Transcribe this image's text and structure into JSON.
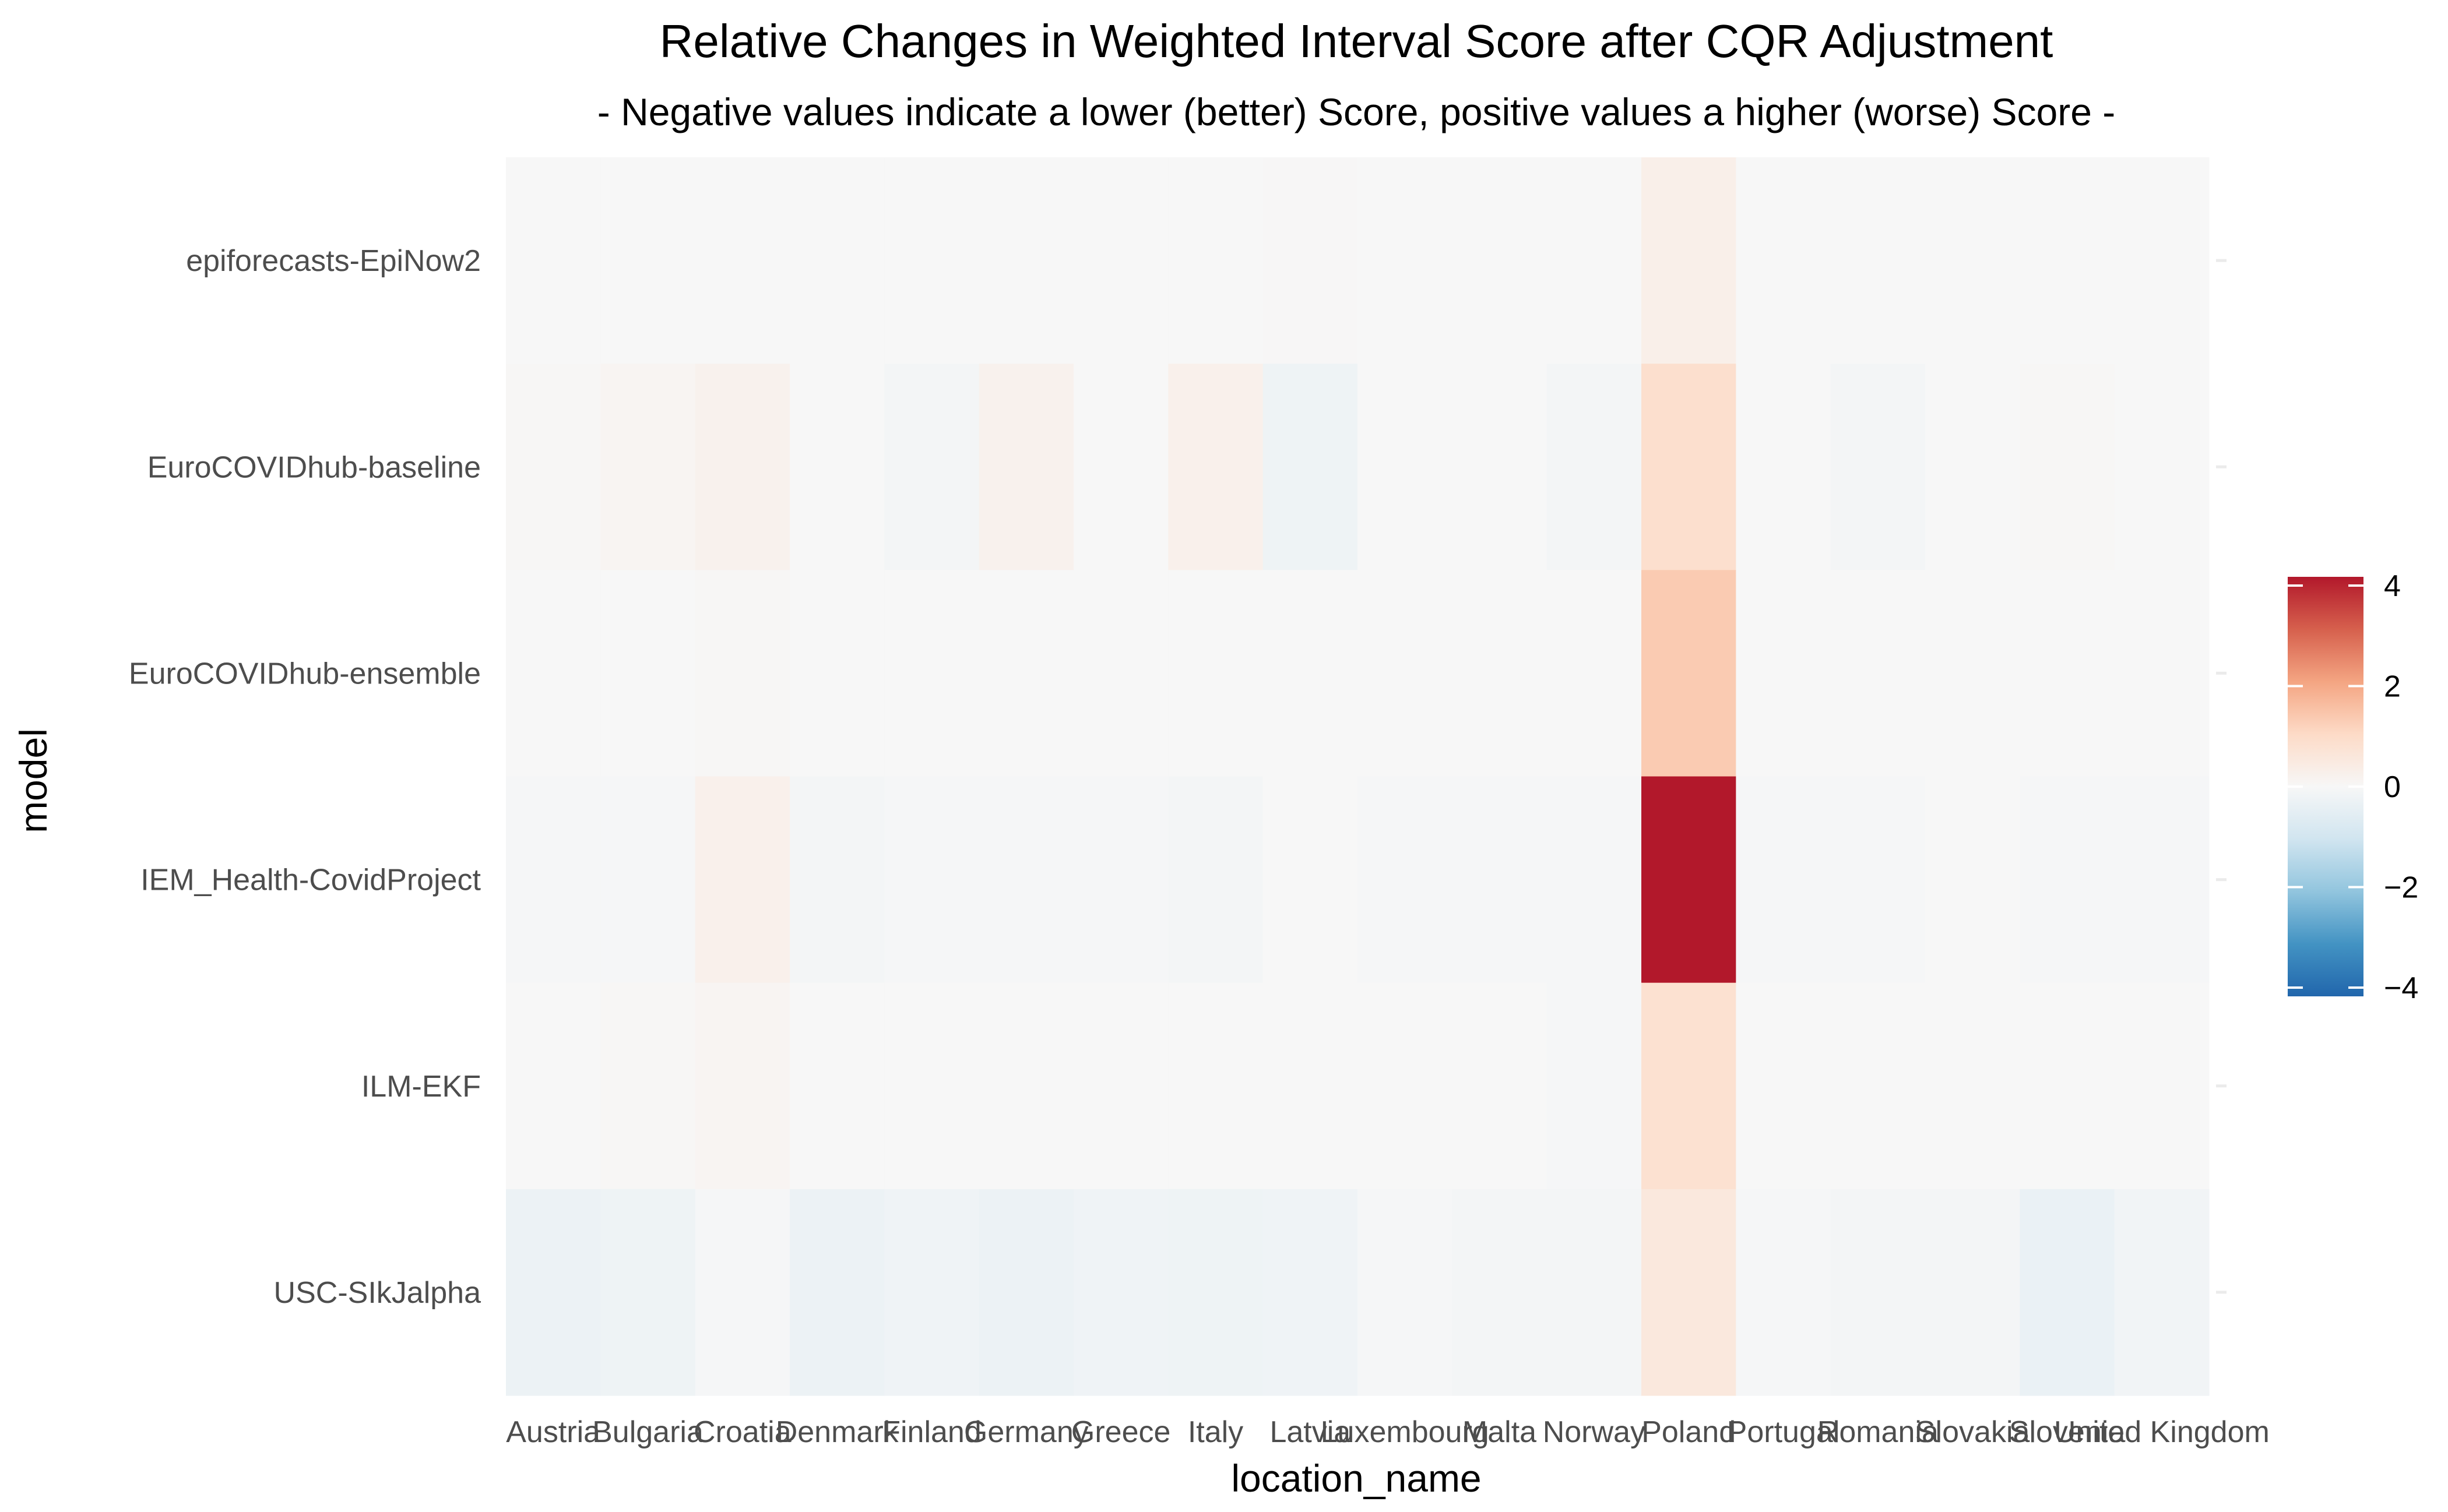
{
  "chart_data": {
    "type": "heatmap",
    "title": "Relative Changes in Weighted Interval Score after CQR Adjustment",
    "subtitle": "- Negative values indicate a lower (better) Score, positive values a higher (worse) Score -",
    "xlabel": "location_name",
    "ylabel": "model",
    "x": [
      "Austria",
      "Bulgaria",
      "Croatia",
      "Denmark",
      "Finland",
      "Germany",
      "Greece",
      "Italy",
      "Latvia",
      "Luxembourg",
      "Malta",
      "Norway",
      "Poland",
      "Portugal",
      "Romania",
      "Slovakia",
      "Slovenia",
      "United Kingdom"
    ],
    "y": [
      "epiforecasts-EpiNow2",
      "EuroCOVIDhub-baseline",
      "EuroCOVIDhub-ensemble",
      "IEM_Health-CovidProject",
      "ILM-EKF",
      "USC-SIkJalpha"
    ],
    "values": [
      [
        0,
        0,
        0,
        0,
        0,
        0,
        0,
        0,
        0.02,
        0,
        0,
        0,
        0.3,
        0,
        0,
        0,
        0,
        0
      ],
      [
        0.05,
        0.1,
        0.2,
        0,
        -0.1,
        0.2,
        0,
        0.25,
        -0.25,
        0,
        0,
        -0.1,
        0.85,
        0,
        -0.1,
        0,
        0.05,
        0
      ],
      [
        0,
        0,
        0.05,
        0,
        0,
        0,
        0,
        0,
        0,
        0,
        0,
        0,
        1.3,
        0,
        0,
        0,
        0,
        0
      ],
      [
        -0.05,
        -0.05,
        0.25,
        -0.1,
        -0.05,
        -0.05,
        -0.05,
        -0.1,
        0,
        -0.05,
        -0.05,
        -0.05,
        4.2,
        -0.05,
        -0.05,
        0,
        -0.05,
        -0.05
      ],
      [
        0,
        0.05,
        0.1,
        0,
        0,
        0,
        0,
        0,
        0,
        0,
        0,
        -0.05,
        0.8,
        0,
        0,
        0,
        0,
        0
      ],
      [
        -0.3,
        -0.25,
        -0.05,
        -0.3,
        -0.2,
        -0.3,
        -0.2,
        -0.25,
        -0.2,
        -0.05,
        -0.1,
        -0.1,
        0.55,
        -0.05,
        -0.1,
        -0.1,
        -0.35,
        -0.15
      ]
    ],
    "color_scale": {
      "min": -4,
      "max": 4,
      "colors": [
        "#2166ac",
        "#4393c3",
        "#92c5de",
        "#d1e5f0",
        "#f7f7f7",
        "#fddbc7",
        "#f4a582",
        "#d6604d",
        "#b2182b"
      ],
      "ticks": [
        4,
        2,
        0,
        -2,
        -4
      ]
    },
    "grid": false,
    "legend_position": "right"
  }
}
